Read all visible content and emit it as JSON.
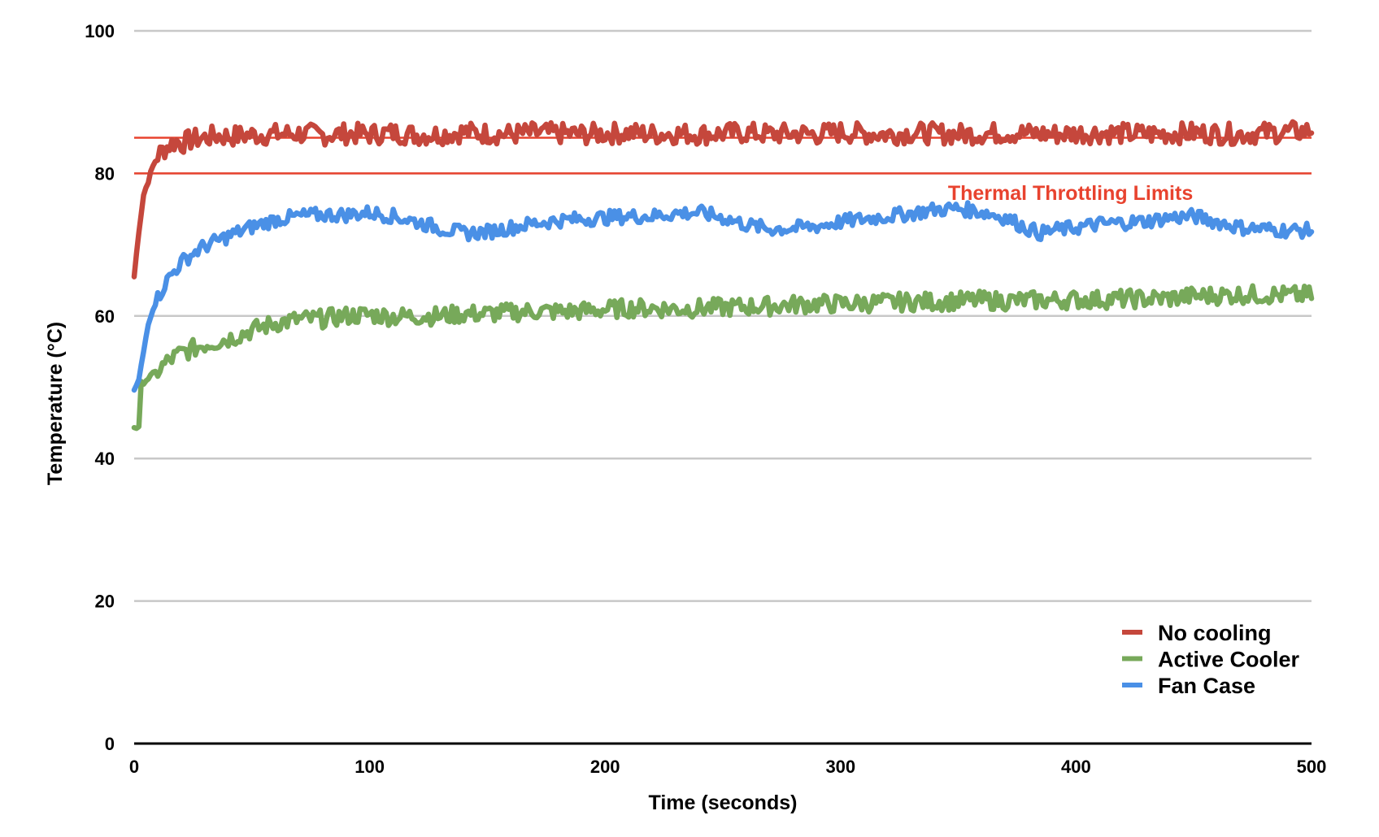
{
  "chart_data": {
    "type": "line",
    "title": "",
    "xlabel": "Time (seconds)",
    "ylabel": "Temperature (°C)",
    "xlim": [
      0,
      500
    ],
    "ylim": [
      0,
      100
    ],
    "x_ticks": [
      0,
      100,
      200,
      300,
      400,
      500
    ],
    "y_ticks": [
      0,
      20,
      40,
      60,
      80,
      100
    ],
    "grid": "horizontal",
    "legend_position": "bottom-right",
    "colors": {
      "no_cooling": "#c5473c",
      "active_cooler": "#77a95a",
      "fan_case": "#4a90e6",
      "limit": "#e8432f",
      "grid": "#c8c8c8"
    },
    "reference_lines": [
      {
        "y": 85,
        "label": ""
      },
      {
        "y": 80,
        "label": ""
      }
    ],
    "annotation": {
      "text": "Thermal Throttling Limits",
      "x": 440,
      "y": 77.2
    },
    "series": [
      {
        "name": "No cooling",
        "color": "#c5473c",
        "x": [
          0,
          2,
          4,
          6,
          8,
          10,
          12,
          15,
          18,
          20,
          25,
          30,
          35,
          40,
          50,
          60,
          70,
          80,
          90,
          100,
          110,
          120,
          130,
          140,
          150,
          160,
          170,
          180,
          190,
          200,
          210,
          220,
          230,
          240,
          250,
          260,
          270,
          280,
          290,
          300,
          310,
          320,
          330,
          340,
          350,
          360,
          370,
          380,
          390,
          400,
          410,
          420,
          430,
          440,
          450,
          460,
          470,
          480,
          490,
          500
        ],
        "y": [
          65.5,
          72,
          77,
          79,
          81,
          82.5,
          83.2,
          84,
          84.5,
          84.2,
          84.8,
          85,
          85.3,
          85.2,
          85.4,
          85.5,
          85.6,
          85.4,
          85.6,
          85.5,
          85.7,
          85.4,
          85.5,
          85.8,
          85.6,
          85.5,
          85.7,
          85.6,
          85.5,
          85.6,
          85.7,
          85.5,
          85.6,
          85.5,
          85.6,
          85.7,
          85.5,
          85.6,
          85.5,
          85.8,
          85.6,
          85.5,
          85.7,
          85.6,
          85.5,
          85.6,
          85.7,
          85.6,
          85.5,
          85.6,
          85.7,
          85.6,
          85.5,
          85.6,
          85.7,
          85.6,
          85.5,
          85.7,
          85.8,
          86
        ]
      },
      {
        "name": "Active Cooler",
        "color": "#77a95a",
        "x": [
          0,
          2,
          3,
          5,
          8,
          10,
          15,
          20,
          25,
          30,
          40,
          50,
          60,
          70,
          80,
          90,
          100,
          110,
          120,
          130,
          140,
          150,
          160,
          170,
          180,
          190,
          200,
          210,
          220,
          230,
          240,
          250,
          260,
          270,
          280,
          290,
          300,
          310,
          320,
          330,
          340,
          350,
          360,
          370,
          380,
          390,
          400,
          410,
          420,
          430,
          440,
          450,
          460,
          470,
          480,
          490,
          500
        ],
        "y": [
          44.5,
          44.2,
          50.5,
          51,
          51.8,
          52.3,
          53.8,
          54.8,
          55.4,
          56,
          56.8,
          58,
          59,
          59.5,
          59.6,
          60,
          60.2,
          59.9,
          60,
          60,
          60.3,
          60.3,
          60.5,
          60.7,
          60.6,
          60.7,
          60.9,
          61.1,
          61.1,
          61,
          61.1,
          61.2,
          61.3,
          61.4,
          61.6,
          61.7,
          61.7,
          61.8,
          61.9,
          62,
          62,
          62.1,
          62.2,
          62.1,
          62.2,
          62.2,
          62.3,
          62.3,
          62.4,
          62.4,
          62.5,
          62.8,
          62.9,
          63,
          63,
          62.9,
          62.9
        ]
      },
      {
        "name": "Fan Case",
        "color": "#4a90e6",
        "x": [
          0,
          2,
          4,
          6,
          8,
          10,
          12,
          15,
          20,
          25,
          30,
          40,
          50,
          60,
          70,
          80,
          90,
          100,
          110,
          120,
          130,
          140,
          150,
          160,
          170,
          180,
          190,
          200,
          210,
          220,
          230,
          240,
          250,
          260,
          270,
          280,
          290,
          300,
          310,
          320,
          330,
          340,
          350,
          360,
          370,
          380,
          385,
          390,
          400,
          410,
          420,
          430,
          440,
          450,
          460,
          470,
          480,
          490,
          500
        ],
        "y": [
          49.5,
          51,
          55,
          59,
          61,
          62.5,
          63.8,
          65.5,
          67.5,
          68.8,
          69.8,
          71.2,
          72.5,
          73.5,
          74,
          74.2,
          74.2,
          74.5,
          74,
          73.2,
          72.3,
          71.6,
          71.8,
          72.4,
          73,
          73.4,
          73.6,
          73.8,
          74,
          74,
          74.4,
          74.5,
          73.8,
          72.8,
          72.2,
          72.3,
          72.6,
          73.2,
          73.6,
          74,
          74.4,
          74.9,
          75.1,
          74.6,
          73.8,
          72.2,
          71.6,
          72,
          72.4,
          72.9,
          73.1,
          73.3,
          73.8,
          74,
          73.2,
          72.4,
          72.2,
          72,
          72
        ]
      }
    ]
  }
}
